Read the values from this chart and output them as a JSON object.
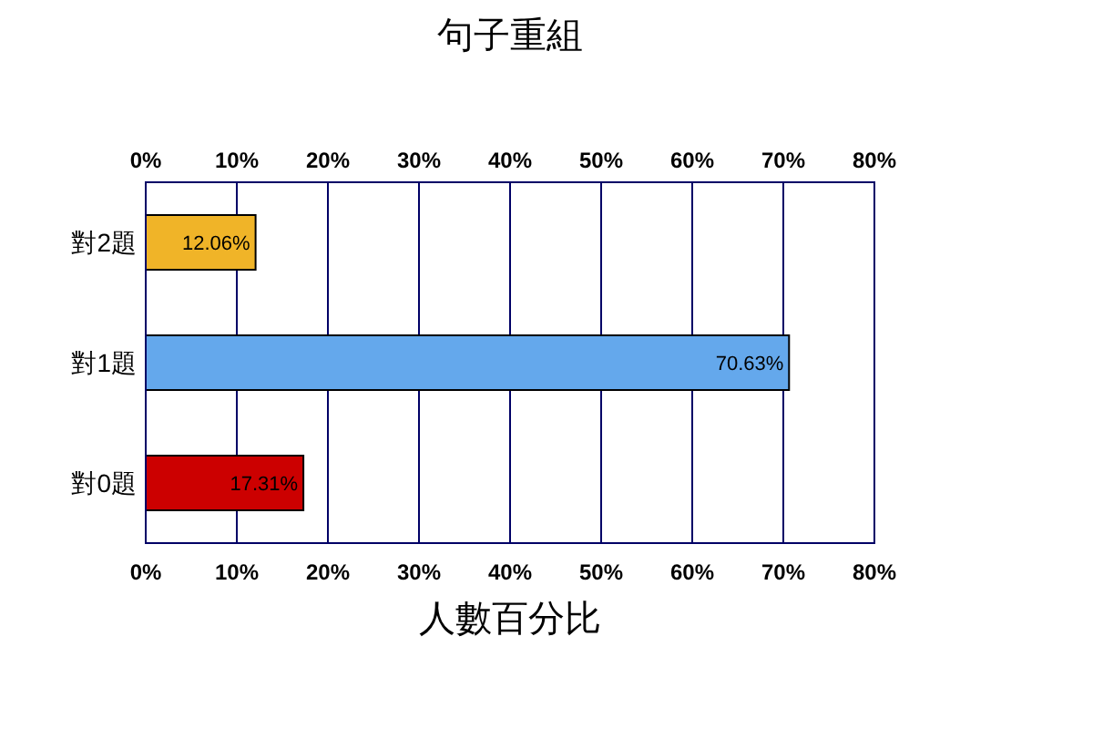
{
  "chart_data": {
    "type": "bar",
    "orientation": "horizontal",
    "title": "句子重組",
    "xlabel": "人數百分比",
    "categories": [
      "對2題",
      "對1題",
      "對0題"
    ],
    "values": [
      12.06,
      70.63,
      17.31
    ],
    "colors": [
      "#f0b428",
      "#64a8ec",
      "#cc0000"
    ],
    "value_labels": [
      "12.06%",
      "70.63%",
      "17.31%"
    ],
    "xlim": [
      0,
      80
    ],
    "xticks": [
      {
        "value": 0,
        "label": "0%"
      },
      {
        "value": 10,
        "label": "10%"
      },
      {
        "value": 20,
        "label": "20%"
      },
      {
        "value": 30,
        "label": "30%"
      },
      {
        "value": 40,
        "label": "40%"
      },
      {
        "value": 50,
        "label": "50%"
      },
      {
        "value": 60,
        "label": "60%"
      },
      {
        "value": 70,
        "label": "70%"
      },
      {
        "value": 80,
        "label": "80%"
      }
    ],
    "x2lim": [
      0,
      80
    ],
    "x2ticks": [
      {
        "value": 0,
        "label": "0%"
      },
      {
        "value": 10,
        "label": "10%"
      },
      {
        "value": 20,
        "label": "20%"
      },
      {
        "value": 30,
        "label": "30%"
      },
      {
        "value": 40,
        "label": "40%"
      },
      {
        "value": 50,
        "label": "50%"
      },
      {
        "value": 60,
        "label": "60%"
      },
      {
        "value": 70,
        "label": "70%"
      },
      {
        "value": 80,
        "label": "80%"
      }
    ],
    "grid": "x"
  }
}
